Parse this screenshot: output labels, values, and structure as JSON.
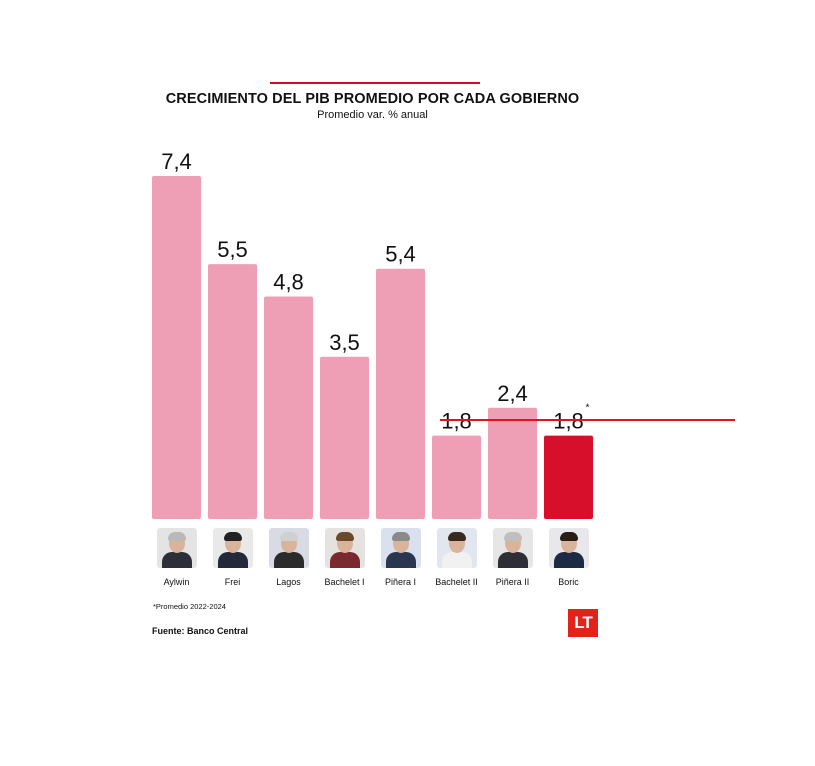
{
  "chart_data": {
    "type": "bar",
    "title": "CRECIMIENTO DEL PIB PROMEDIO POR CADA GOBIERNO",
    "subtitle": "Promedio var. % anual",
    "categories": [
      "Aylwin",
      "Frei",
      "Lagos",
      "Bachelet I",
      "Piñera I",
      "Bachelet II",
      "Piñera II",
      "Boric"
    ],
    "values": [
      7.4,
      5.5,
      4.8,
      3.5,
      5.4,
      1.8,
      2.4,
      1.8
    ],
    "value_labels": [
      "7,4",
      "5,5",
      "4,8",
      "3,5",
      "5,4",
      "1,8",
      "2,4",
      "1,8"
    ],
    "highlight_index": 7,
    "highlight_marker": "*",
    "reference_value": 1.8,
    "ylim": [
      0,
      7.4
    ],
    "grid": false,
    "colors": {
      "bar": "#ef9fb5",
      "highlight": "#d80f2b",
      "reference_line": "#e0141e"
    }
  },
  "portrait_icons": [
    "aylwin-portrait",
    "frei-portrait",
    "lagos-portrait",
    "bachelet-portrait",
    "pinera-portrait",
    "bachelet-portrait",
    "pinera-portrait",
    "boric-portrait"
  ],
  "footnote": "*Promedio 2022-2024",
  "source": "Fuente: Banco Central",
  "logo": "LT"
}
